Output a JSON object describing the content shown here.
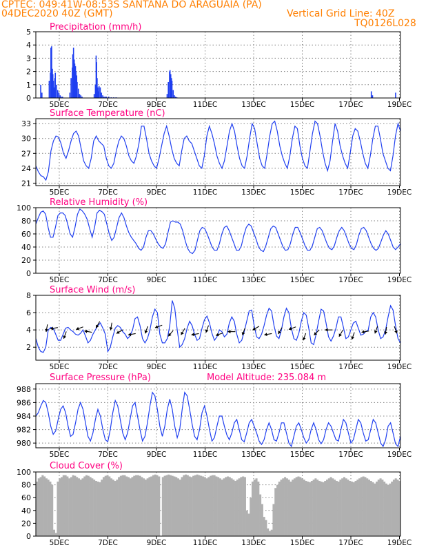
{
  "header": {
    "line1": "CPTEC:   049:41W-08:53S   SANTANA DO ARAGUAIA (PA)",
    "line2": "04DEC2020 40Z (GMT)",
    "grid_note": "Vertical Grid Line: 40Z",
    "code": "TQ0126L028"
  },
  "colors": {
    "header": "#ff7f00",
    "title": "#ff0080",
    "series": "#1f3ff0",
    "cloud": "#b0b0b0"
  },
  "x_ticks": [
    "5DEC",
    "7DEC",
    "9DEC",
    "11DEC",
    "13DEC",
    "15DEC",
    "17DEC",
    "19DEC"
  ],
  "chart_data": [
    {
      "type": "bar",
      "title": "Precipitation (mm/h)",
      "ylim": [
        0,
        5
      ],
      "yticks": [
        "0",
        "1",
        "2",
        "3",
        "4",
        "5"
      ],
      "x_units": "days since start (04DEC ~04Z)",
      "x": [
        0.2,
        0.25,
        0.55,
        0.6,
        0.62,
        0.65,
        0.68,
        0.7,
        0.72,
        0.75,
        0.78,
        0.8,
        0.85,
        0.9,
        0.95,
        1.0,
        1.05,
        1.1,
        1.4,
        1.45,
        1.5,
        1.52,
        1.55,
        1.58,
        1.6,
        1.63,
        1.65,
        1.68,
        1.7,
        1.75,
        1.8,
        1.85,
        1.9,
        2.4,
        2.45,
        2.48,
        2.5,
        2.52,
        2.55,
        2.58,
        2.6,
        2.65,
        2.7,
        2.75,
        2.8,
        2.85,
        2.9,
        3.0,
        3.1,
        3.2,
        3.3,
        5.4,
        5.45,
        5.5,
        5.52,
        5.55,
        5.58,
        5.6,
        5.65,
        5.7,
        5.75,
        5.8,
        13.8,
        13.85,
        14.8
      ],
      "values": [
        1.0,
        0.4,
        1.3,
        1.9,
        3.8,
        3.9,
        2.2,
        1.8,
        1.3,
        0.8,
        1.5,
        1.9,
        1.0,
        0.6,
        0.4,
        0.2,
        0.1,
        0.1,
        0.4,
        1.5,
        2.3,
        3.3,
        3.8,
        2.9,
        2.6,
        2.4,
        2.0,
        1.7,
        1.2,
        0.7,
        0.3,
        0.2,
        0.1,
        0.3,
        1.0,
        3.2,
        2.7,
        1.5,
        0.8,
        0.5,
        0.9,
        0.8,
        0.4,
        0.2,
        0.1,
        0.1,
        0.1,
        0.1,
        0.05,
        0.05,
        0.05,
        0.3,
        1.2,
        2.0,
        2.1,
        1.8,
        1.5,
        1.3,
        0.6,
        0.2,
        0.1,
        0.05,
        0.5,
        0.2,
        0.4
      ]
    },
    {
      "type": "line",
      "title": "Surface Temperature (nC)",
      "ylim": [
        20.5,
        34
      ],
      "yticks": [
        "21",
        "24",
        "27",
        "30",
        "33"
      ],
      "series": [
        {
          "values": [
            24.5,
            23.3,
            22.5,
            22.3,
            21.6,
            23.3,
            27.5,
            29.5,
            30.5,
            30.3,
            29.0,
            27.0,
            26.0,
            27.5,
            29.5,
            31.0,
            31.5,
            30.5,
            28.0,
            25.5,
            24.5,
            24.0,
            26.0,
            29.5,
            30.5,
            29.5,
            29.0,
            28.5,
            26.0,
            24.5,
            24.0,
            25.0,
            27.5,
            29.5,
            30.5,
            30.0,
            28.5,
            26.5,
            25.5,
            25.0,
            26.5,
            29.0,
            32.5,
            32.5,
            30.0,
            27.0,
            25.5,
            24.5,
            24.0,
            26.0,
            28.5,
            31.0,
            32.5,
            30.5,
            28.0,
            26.0,
            25.0,
            24.5,
            27.5,
            30.0,
            30.5,
            29.5,
            29.0,
            27.5,
            26.0,
            24.5,
            24.0,
            26.5,
            30.5,
            32.5,
            31.0,
            29.0,
            26.5,
            25.0,
            24.0,
            25.5,
            28.5,
            31.5,
            33.0,
            31.5,
            28.5,
            26.0,
            24.5,
            24.0,
            26.5,
            30.0,
            33.0,
            32.0,
            29.0,
            26.0,
            24.5,
            24.0,
            27.0,
            30.5,
            33.0,
            33.5,
            31.5,
            28.5,
            26.5,
            25.0,
            24.0,
            26.5,
            30.0,
            32.5,
            32.0,
            28.5,
            26.0,
            24.5,
            24.0,
            27.5,
            31.0,
            33.5,
            33.0,
            30.5,
            27.5,
            25.0,
            23.5,
            25.5,
            29.5,
            33.0,
            31.5,
            28.5,
            26.5,
            25.0,
            24.0,
            27.0,
            30.5,
            32.0,
            31.5,
            29.5,
            27.0,
            25.0,
            24.0,
            26.5,
            30.0,
            32.5,
            32.5,
            30.0,
            27.0,
            25.5,
            24.0,
            23.5,
            26.5,
            30.5,
            33.0,
            31.5
          ]
        }
      ]
    },
    {
      "type": "line",
      "title": "Relative Humidity (%)",
      "ylim": [
        0,
        100
      ],
      "yticks": [
        "0",
        "20",
        "40",
        "60",
        "80",
        "100"
      ],
      "series": [
        {
          "values": [
            75,
            85,
            93,
            95,
            90,
            70,
            55,
            55,
            70,
            88,
            92,
            92,
            88,
            75,
            60,
            55,
            70,
            90,
            98,
            95,
            90,
            82,
            68,
            55,
            70,
            92,
            96,
            94,
            90,
            75,
            60,
            50,
            55,
            70,
            85,
            92,
            85,
            72,
            62,
            55,
            50,
            45,
            38,
            35,
            40,
            55,
            65,
            65,
            60,
            52,
            45,
            40,
            38,
            45,
            62,
            78,
            80,
            78,
            78,
            75,
            65,
            50,
            38,
            32,
            30,
            35,
            50,
            65,
            70,
            68,
            60,
            50,
            40,
            35,
            35,
            45,
            60,
            70,
            72,
            65,
            55,
            45,
            35,
            35,
            42,
            58,
            70,
            75,
            72,
            62,
            52,
            40,
            35,
            33,
            42,
            55,
            68,
            72,
            70,
            60,
            50,
            40,
            35,
            36,
            45,
            60,
            70,
            70,
            62,
            52,
            42,
            35,
            35,
            42,
            55,
            68,
            70,
            65,
            55,
            45,
            38,
            36,
            42,
            55,
            65,
            70,
            65,
            55,
            45,
            38,
            36,
            44,
            58,
            68,
            70,
            65,
            55,
            45,
            38,
            35,
            38,
            48,
            58,
            65,
            60,
            50,
            40,
            36,
            40,
            45
          ]
        }
      ]
    },
    {
      "type": "line",
      "title": "Surface Wind (m/s)",
      "ylim": [
        0.5,
        8
      ],
      "yticks": [
        "2",
        "4",
        "6",
        "8"
      ],
      "series": [
        {
          "values": [
            3.0,
            2.0,
            1.5,
            1.4,
            2.0,
            4.0,
            4.3,
            4.2,
            3.5,
            2.8,
            2.8,
            3.5,
            4.2,
            4.3,
            4.0,
            3.8,
            3.5,
            3.4,
            3.6,
            4.0,
            3.3,
            2.5,
            2.8,
            3.5,
            4.0,
            4.5,
            4.8,
            4.2,
            3.5,
            1.5,
            2.0,
            3.2,
            4.2,
            4.5,
            4.3,
            3.8,
            3.5,
            3.0,
            3.3,
            4.0,
            5.3,
            5.5,
            4.5,
            3.0,
            2.5,
            3.0,
            4.0,
            5.5,
            6.4,
            6.0,
            3.5,
            2.5,
            2.5,
            3.0,
            4.5,
            7.4,
            6.5,
            4.0,
            2.0,
            2.3,
            3.0,
            4.2,
            5.0,
            4.5,
            3.5,
            2.8,
            3.0,
            4.2,
            5.2,
            5.6,
            4.8,
            3.6,
            2.8,
            3.2,
            4.0,
            3.8,
            3.2,
            3.5,
            4.8,
            5.5,
            5.0,
            3.5,
            2.5,
            2.8,
            3.8,
            5.0,
            6.2,
            6.3,
            4.5,
            3.2,
            3.0,
            3.5,
            4.5,
            5.7,
            6.5,
            6.2,
            4.5,
            3.3,
            3.0,
            4.0,
            5.5,
            6.5,
            6.0,
            4.2,
            3.0,
            2.8,
            3.6,
            5.0,
            6.0,
            5.7,
            4.2,
            2.5,
            2.3,
            3.5,
            5.0,
            6.4,
            6.2,
            4.8,
            3.2,
            2.7,
            3.3,
            4.2,
            5.5,
            5.5,
            4.3,
            3.0,
            3.2,
            4.0,
            4.8,
            5.0,
            4.2,
            3.4,
            3.5,
            3.8,
            4.0,
            5.5,
            6.0,
            5.5,
            4.0,
            3.0,
            3.2,
            4.0,
            5.5,
            6.8,
            6.3,
            4.5,
            3.0,
            2.5
          ]
        }
      ],
      "arrows": {
        "x": [
          0.45,
          0.75,
          1.2,
          1.8,
          2.15,
          2.55,
          3.1,
          3.45,
          3.95,
          4.55,
          5.05,
          5.55,
          6.05,
          6.55,
          7.05,
          7.55,
          8.05,
          8.55,
          9.05,
          9.55,
          10.05,
          10.55,
          11.05,
          11.55,
          12.05,
          12.55,
          13.05,
          13.55,
          14.0,
          14.4,
          14.8
        ],
        "y": [
          4.2,
          4.2,
          3.4,
          4.2,
          3.8,
          4.6,
          4.4,
          3.8,
          3.5,
          4.0,
          4.4,
          3.6,
          3.8,
          3.5,
          4.1,
          3.5,
          3.8,
          3.8,
          4.2,
          3.5,
          3.9,
          4.2,
          3.2,
          3.7,
          4.0,
          3.6,
          3.3,
          3.8,
          4.0,
          3.9,
          4.0
        ],
        "direction_deg": [
          190,
          260,
          200,
          250,
          280,
          210,
          190,
          240,
          260,
          200,
          250,
          220,
          210,
          260,
          200,
          250,
          270,
          200,
          240,
          260,
          210,
          250,
          200,
          225,
          270,
          210,
          200,
          260,
          200,
          190,
          160
        ]
      }
    },
    {
      "type": "line",
      "title": "Surface Pressure (hPa)",
      "annotation": "Model Altitude: 235.084 m",
      "ylim": [
        979.3,
        988.8
      ],
      "yticks": [
        "980",
        "982",
        "984",
        "986",
        "988"
      ],
      "series": [
        {
          "values": [
            984.0,
            984.5,
            985.5,
            986.3,
            986.0,
            984.5,
            982.5,
            981.3,
            981.8,
            983.5,
            985.0,
            985.5,
            984.5,
            982.5,
            981.0,
            981.3,
            983.0,
            985.0,
            986.0,
            985.0,
            983.0,
            981.0,
            980.3,
            981.5,
            983.5,
            985.0,
            984.0,
            982.0,
            980.5,
            980.2,
            982.0,
            984.5,
            986.3,
            985.5,
            983.5,
            981.5,
            980.5,
            981.5,
            983.5,
            985.5,
            986.0,
            984.0,
            982.0,
            980.3,
            981.0,
            983.0,
            985.5,
            987.5,
            987.0,
            985.0,
            982.5,
            981.0,
            982.5,
            985.0,
            986.5,
            985.0,
            982.5,
            980.8,
            982.0,
            985.0,
            987.5,
            987.0,
            985.0,
            982.8,
            981.0,
            980.5,
            982.0,
            984.5,
            985.5,
            984.0,
            982.0,
            980.3,
            980.8,
            982.5,
            984.0,
            984.0,
            982.5,
            981.2,
            980.5,
            981.5,
            983.0,
            983.5,
            982.0,
            980.5,
            980.2,
            981.5,
            983.0,
            983.5,
            982.5,
            981.5,
            980.3,
            979.8,
            980.5,
            982.0,
            983.0,
            982.0,
            980.5,
            980.3,
            981.5,
            983.0,
            983.0,
            981.5,
            980.0,
            979.5,
            981.0,
            982.5,
            983.0,
            982.0,
            980.8,
            980.0,
            980.5,
            982.0,
            983.0,
            982.0,
            980.5,
            979.9,
            980.5,
            982.0,
            983.0,
            982.5,
            981.5,
            980.5,
            980.3,
            982.0,
            983.5,
            983.0,
            981.5,
            980.0,
            980.5,
            982.0,
            983.5,
            983.0,
            981.5,
            980.3,
            980.5,
            982.0,
            983.5,
            983.0,
            981.5,
            980.0,
            979.5,
            980.5,
            982.5,
            983.0,
            981.5,
            979.9,
            979.5,
            981.0
          ]
        }
      ]
    },
    {
      "type": "bar",
      "title": "Cloud Cover (%)",
      "ylim": [
        0,
        100
      ],
      "yticks": [
        "0",
        "20",
        "40",
        "60",
        "80",
        "100"
      ],
      "values": [
        85,
        90,
        92,
        95,
        93,
        90,
        88,
        85,
        80,
        10,
        5,
        85,
        90,
        92,
        95,
        95,
        93,
        90,
        92,
        95,
        94,
        92,
        90,
        88,
        90,
        93,
        95,
        94,
        92,
        90,
        88,
        86,
        85,
        84,
        88,
        92,
        94,
        95,
        93,
        90,
        88,
        86,
        88,
        92,
        94,
        95,
        95,
        93,
        92,
        90,
        92,
        94,
        95,
        95,
        94,
        92,
        90,
        88,
        90,
        92,
        93,
        95,
        96,
        95,
        93,
        0,
        92,
        94,
        95,
        96,
        95,
        94,
        93,
        92,
        90,
        88,
        92,
        95,
        96,
        95,
        93,
        92,
        94,
        95,
        96,
        95,
        94,
        93,
        92,
        90,
        92,
        94,
        95,
        95,
        93,
        92,
        90,
        88,
        90,
        92,
        93,
        92,
        90,
        88,
        86,
        88,
        90,
        92,
        93,
        92,
        40,
        35,
        60,
        85,
        88,
        90,
        85,
        65,
        50,
        30,
        25,
        12,
        8,
        10,
        50,
        75,
        80,
        85,
        88,
        90,
        92,
        90,
        88,
        85,
        88,
        90,
        92,
        93,
        92,
        90,
        88,
        86,
        85,
        84,
        86,
        88,
        90,
        88,
        86,
        85,
        84,
        86,
        88,
        90,
        92,
        90,
        88,
        86,
        85,
        88,
        90,
        92,
        90,
        88,
        86,
        85,
        84,
        86,
        88,
        90,
        92,
        93,
        92,
        90,
        88,
        86,
        84,
        82,
        85,
        88,
        90,
        88,
        85,
        82,
        80,
        82,
        85,
        88,
        90,
        88,
        86
      ]
    }
  ]
}
